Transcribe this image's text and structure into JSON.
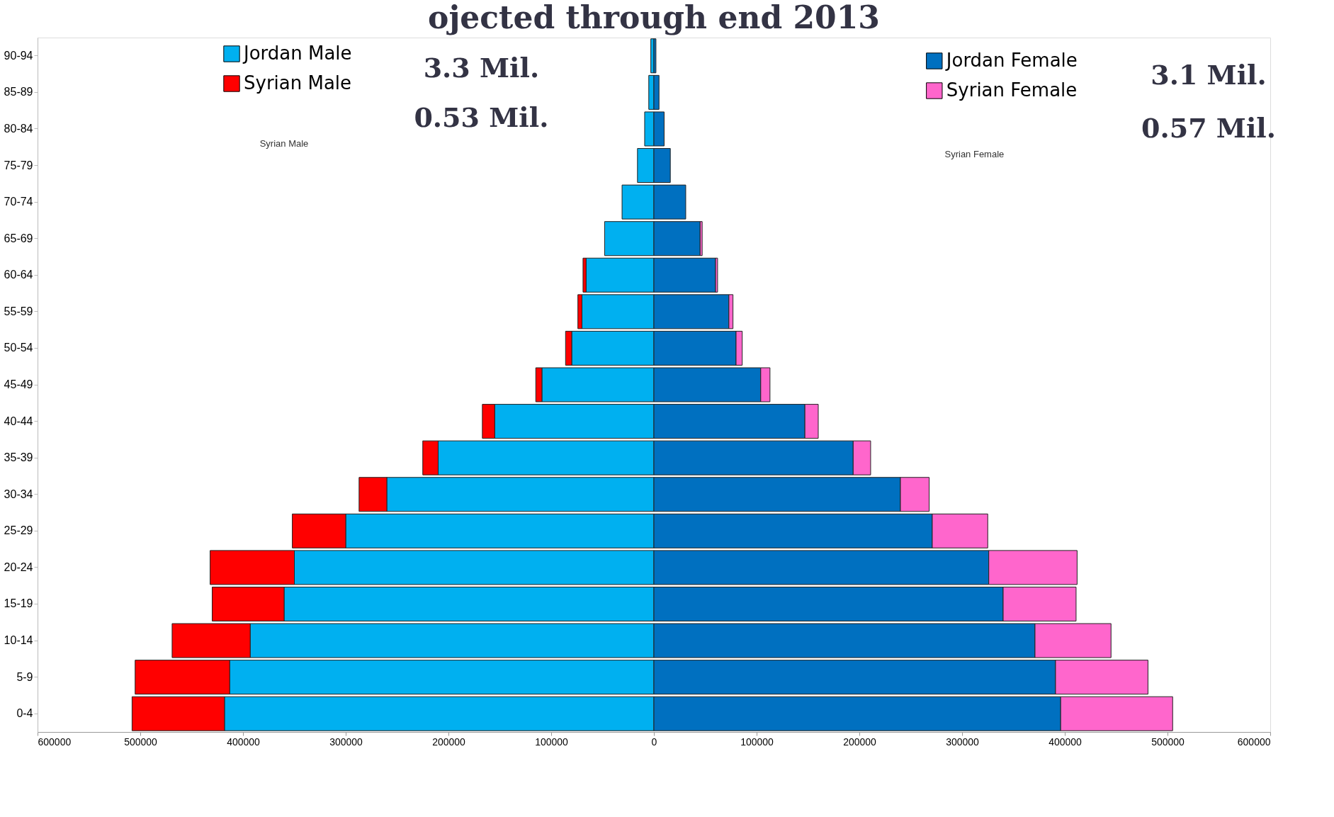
{
  "chart_data": {
    "type": "bar",
    "orientation": "horizontal",
    "stacked": true,
    "title": "ojected through end 2013",
    "categories": [
      "90-94",
      "85-89",
      "80-84",
      "75-79",
      "70-74",
      "65-69",
      "60-64",
      "55-59",
      "50-54",
      "45-49",
      "40-44",
      "35-39",
      "30-34",
      "25-29",
      "20-24",
      "15-19",
      "10-14",
      "5-9",
      "0-4"
    ],
    "series": [
      {
        "name": "Jordan Male",
        "color": "#00b0f0",
        "values": [
          -3000,
          -5000,
          -9000,
          -16000,
          -31000,
          -48000,
          -66000,
          -70000,
          -80000,
          -109000,
          -155000,
          -210000,
          -260000,
          -300000,
          -350000,
          -360000,
          -393000,
          -413000,
          -418000
        ]
      },
      {
        "name": "Syrian Male",
        "color": "#ff0000",
        "values": [
          0,
          0,
          0,
          0,
          0,
          0,
          -3000,
          -4000,
          -6000,
          -6000,
          -12000,
          -15000,
          -27000,
          -52000,
          -82000,
          -70000,
          -76000,
          -92000,
          -90000
        ]
      },
      {
        "name": "Jordan Female",
        "color": "#0070c0",
        "values": [
          2000,
          5000,
          10000,
          16000,
          31000,
          45000,
          60000,
          73000,
          80000,
          104000,
          147000,
          194000,
          240000,
          271000,
          326000,
          340000,
          371000,
          391000,
          396000
        ]
      },
      {
        "name": "Syrian Female",
        "color": "#ff66cc",
        "values": [
          0,
          0,
          0,
          0,
          0,
          2000,
          2000,
          4000,
          6000,
          9000,
          13000,
          17000,
          28000,
          54000,
          86000,
          71000,
          74000,
          90000,
          109000
        ]
      }
    ],
    "xlim": [
      -600000,
      600000
    ],
    "xticks": [
      {
        "value": -600000,
        "label": "600000"
      },
      {
        "value": -500000,
        "label": "500000"
      },
      {
        "value": -400000,
        "label": "400000"
      },
      {
        "value": -300000,
        "label": "300000"
      },
      {
        "value": -200000,
        "label": "200000"
      },
      {
        "value": -100000,
        "label": "100000"
      },
      0,
      100000,
      200000,
      300000,
      400000,
      500000,
      600000
    ],
    "annotations": [
      "3.3 Mil.",
      "0.53 Mil.",
      "3.1 Mil.",
      "0.57 Mil.",
      "Syrian Male",
      "Syrian Female"
    ],
    "legend": "top",
    "grid": false
  }
}
